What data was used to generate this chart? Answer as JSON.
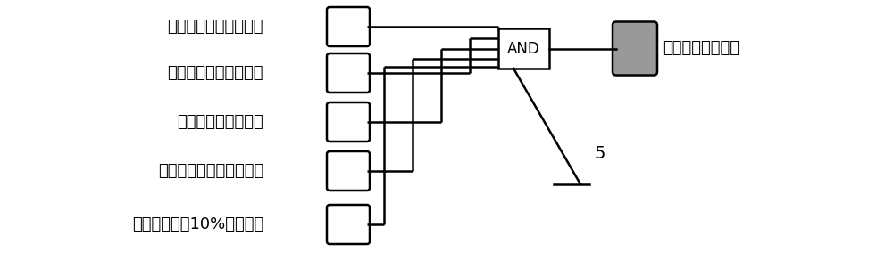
{
  "labels_left": [
    "机组一次调频功能投入",
    "飞轮储能辅助调频投入",
    "电网频率信号品质好",
    "储能系统高压柜合闸状态",
    "飞轮转速小于10%额定转速"
  ],
  "label_right": "飞轮储能充电允许",
  "and_label": "AND",
  "number_label": "5",
  "bg_color": "#ffffff",
  "line_color": "#000000",
  "output_fill": "#999999",
  "text_color": "#000000",
  "font_size": 13
}
